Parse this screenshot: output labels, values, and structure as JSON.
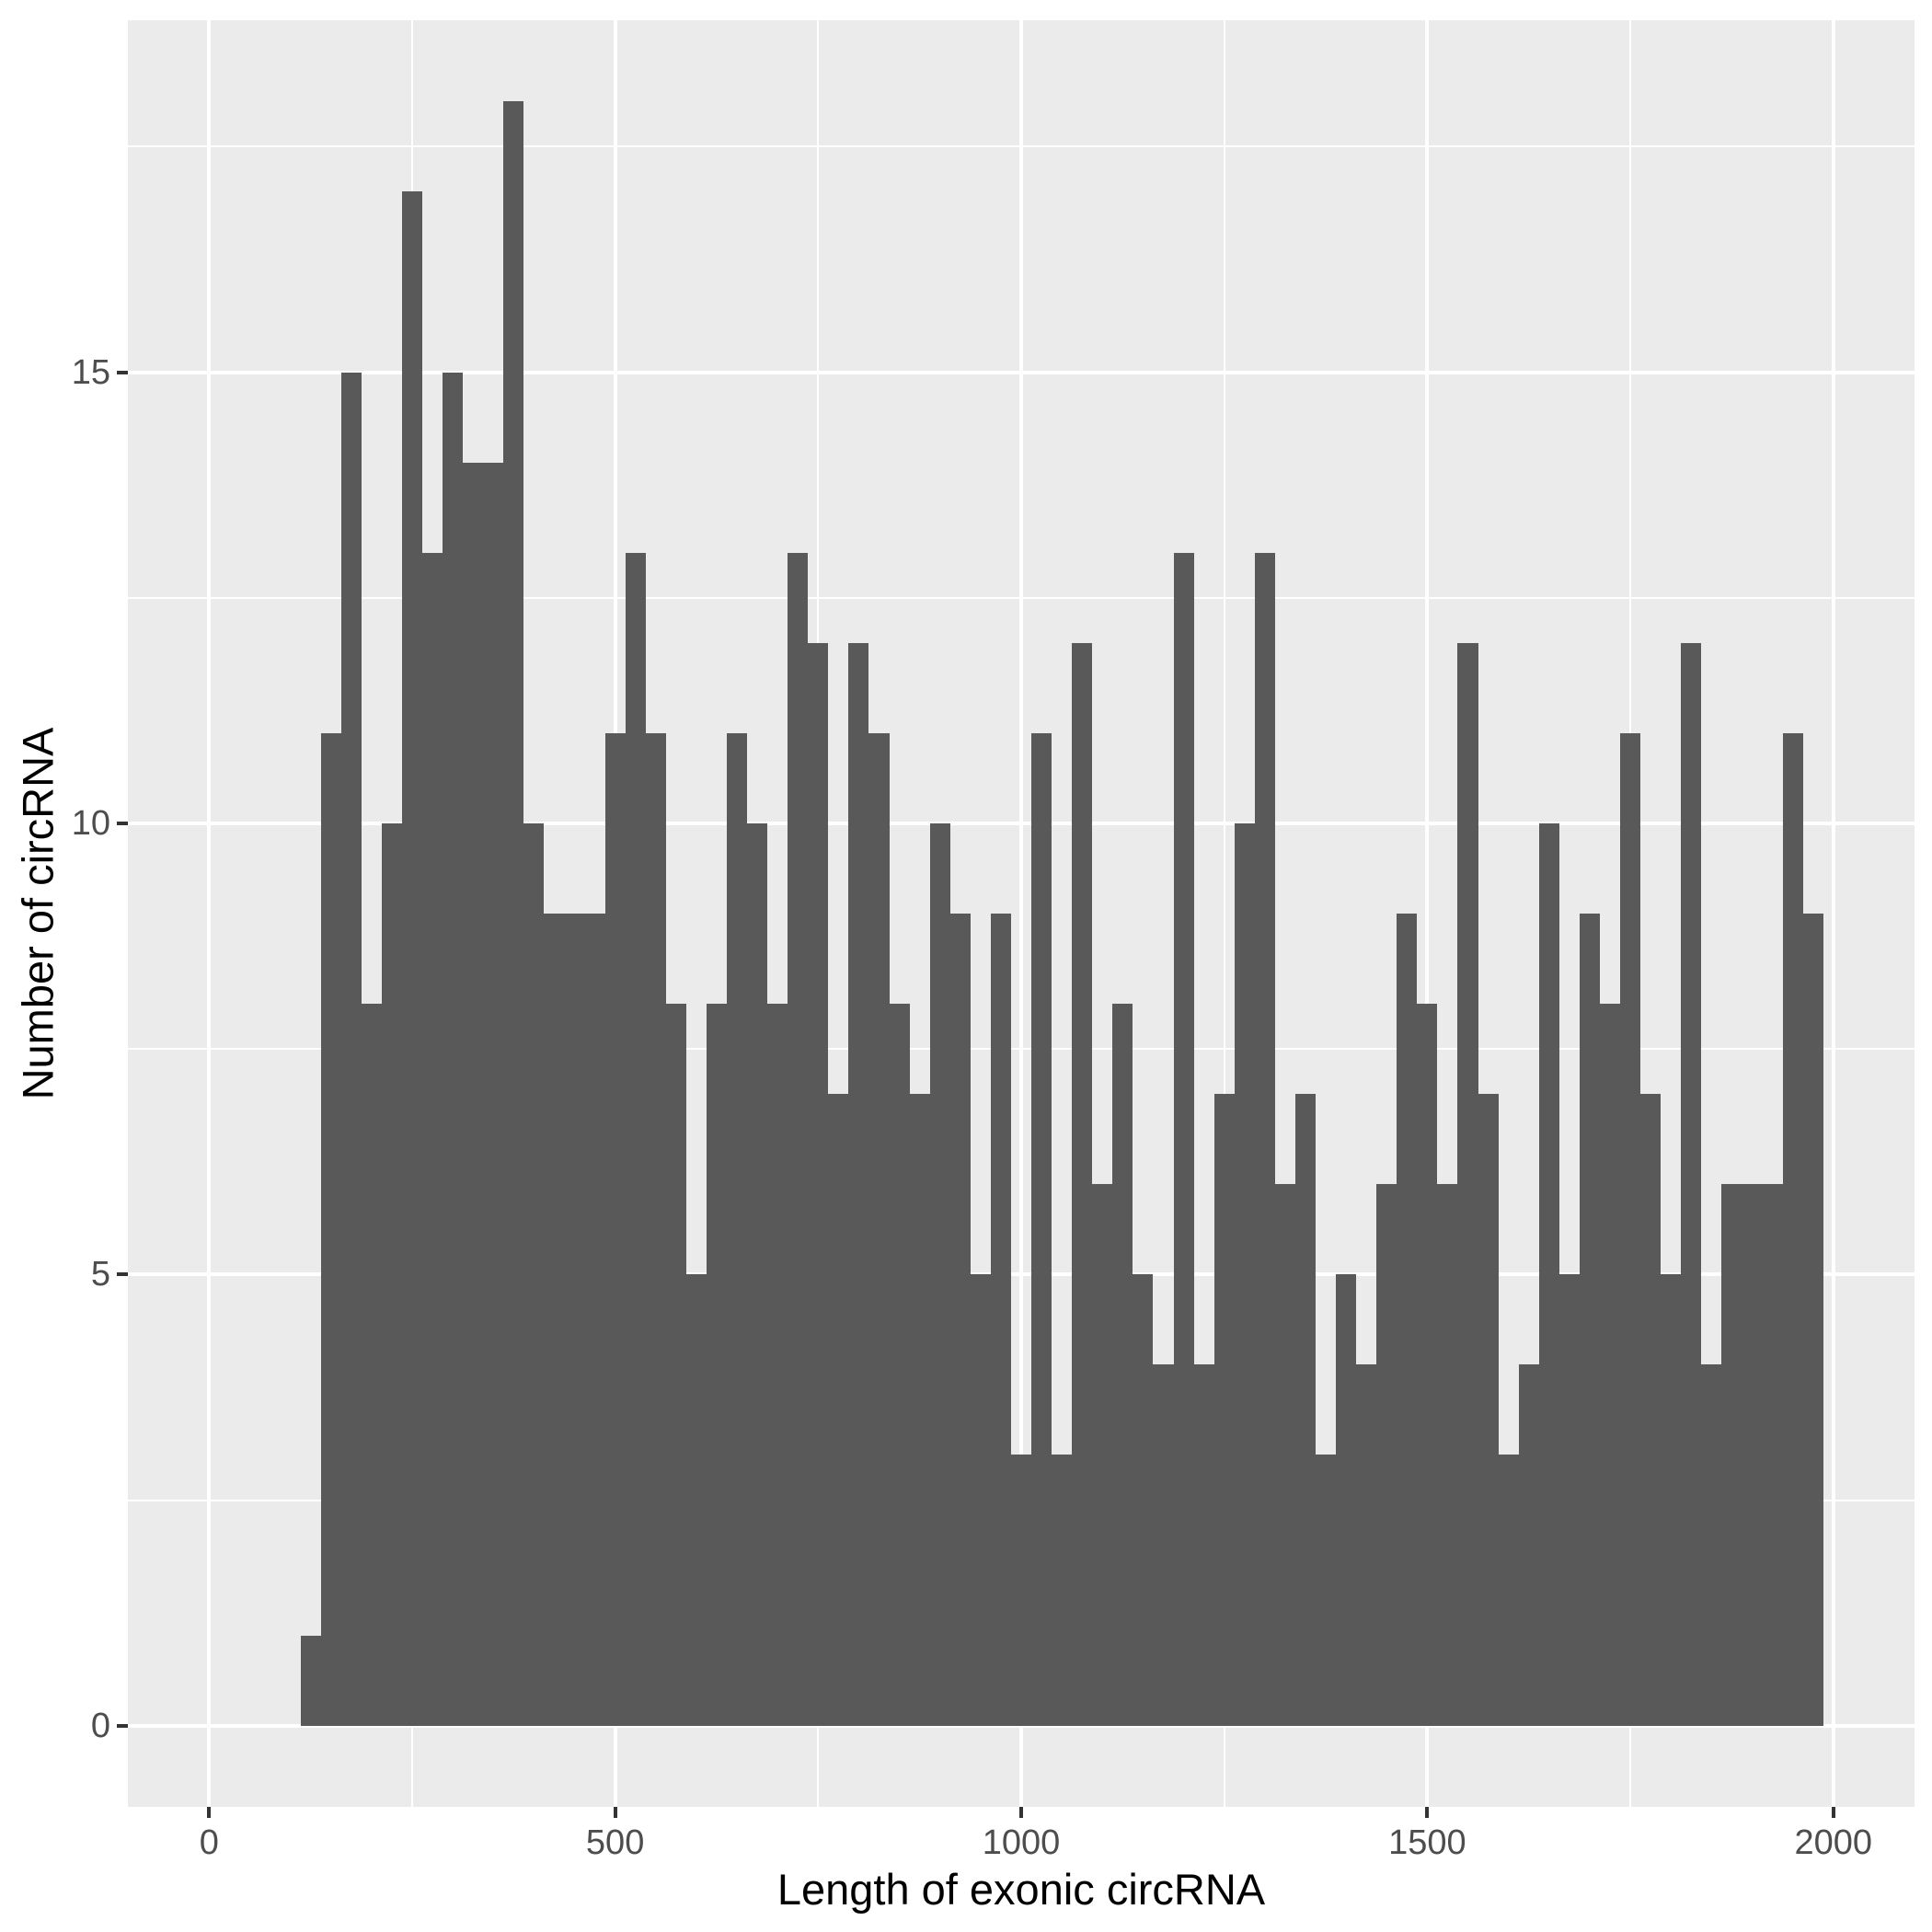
{
  "chart_data": {
    "type": "bar",
    "subtype": "histogram",
    "title": "",
    "xlabel": "Length of exonic circRNA",
    "ylabel": "Number of circRNA",
    "bar_color": "#595959",
    "panel_background": "#EBEBEB",
    "gridline_color": "#FFFFFF",
    "tick_color": "#333333",
    "tick_label_color": "#4D4D4D",
    "axis_title_color": "#000000",
    "grid": "on",
    "legend": "none",
    "xlim": [
      -100,
      2100
    ],
    "ylim": [
      -0.9,
      18.9
    ],
    "x_ticks": [
      0,
      500,
      1000,
      1500,
      2000
    ],
    "x_tick_labels": [
      "0",
      "500",
      "1000",
      "1500",
      "2000"
    ],
    "y_ticks": [
      0,
      5,
      10,
      15
    ],
    "y_tick_labels": [
      "0",
      "5",
      "10",
      "15"
    ],
    "x_minor_ticks": [
      250,
      750,
      1250,
      1750
    ],
    "y_minor_ticks": [
      2.5,
      7.5,
      12.5,
      17.5
    ],
    "bin_width": 25,
    "bin_centers": [
      125,
      150,
      175,
      200,
      225,
      250,
      275,
      300,
      325,
      350,
      375,
      400,
      425,
      450,
      475,
      500,
      525,
      550,
      575,
      600,
      625,
      650,
      675,
      700,
      725,
      750,
      775,
      800,
      825,
      850,
      875,
      900,
      925,
      950,
      975,
      1000,
      1025,
      1050,
      1075,
      1100,
      1125,
      1150,
      1175,
      1200,
      1225,
      1250,
      1275,
      1300,
      1325,
      1350,
      1375,
      1400,
      1425,
      1450,
      1475,
      1500,
      1525,
      1550,
      1575,
      1600,
      1625,
      1650,
      1675,
      1700,
      1725,
      1750,
      1775,
      1800,
      1825,
      1850,
      1875,
      1900,
      1925,
      1950,
      1975
    ],
    "counts": [
      1,
      11,
      15,
      8,
      10,
      17,
      13,
      15,
      14,
      14,
      18,
      10,
      9,
      9,
      9,
      11,
      13,
      11,
      8,
      5,
      8,
      11,
      10,
      8,
      13,
      12,
      7,
      12,
      11,
      8,
      7,
      10,
      9,
      5,
      9,
      3,
      11,
      3,
      12,
      6,
      8,
      5,
      4,
      13,
      4,
      7,
      10,
      13,
      6,
      7,
      3,
      5,
      4,
      6,
      9,
      8,
      6,
      12,
      7,
      3,
      4,
      10,
      5,
      9,
      8,
      11,
      7,
      5,
      12,
      4,
      6,
      6,
      6,
      11,
      9
    ]
  }
}
